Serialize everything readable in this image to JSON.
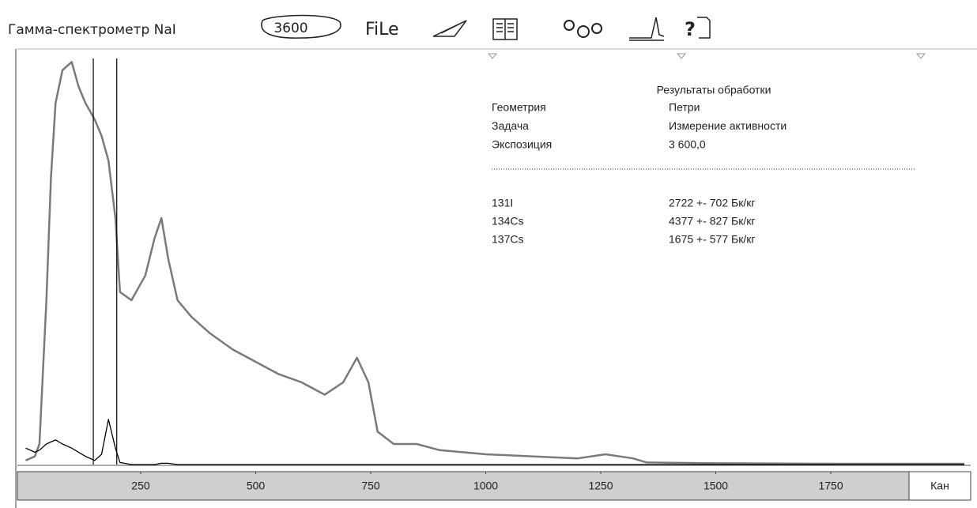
{
  "toolbar": {
    "title": "Гамма-спектрометр NaI",
    "time_button": "3600",
    "file_icon": "FiLe",
    "help_icon": "?"
  },
  "chart_data": {
    "type": "line",
    "x_label": "Кан",
    "xlim": [
      -18,
      2054
    ],
    "ylim": [
      0,
      100
    ],
    "xticks": [
      250,
      500,
      750,
      1000,
      1250,
      1500,
      1750
    ],
    "x": [
      0,
      20,
      30,
      45,
      55,
      65,
      80,
      100,
      115,
      130,
      150,
      165,
      180,
      195,
      205,
      230,
      260,
      280,
      295,
      310,
      330,
      360,
      400,
      450,
      500,
      550,
      600,
      650,
      690,
      720,
      745,
      765,
      800,
      850,
      900,
      950,
      1000,
      1100,
      1200,
      1260,
      1320,
      1350,
      1500,
      1750,
      2040
    ],
    "series": [
      {
        "color": "#7a7a7a",
        "values": [
          1,
          2,
          5,
          40,
          70,
          88,
          96,
          98,
          92,
          88,
          84,
          80,
          74,
          60,
          42,
          40,
          46,
          55,
          60,
          50,
          40,
          36,
          32,
          28,
          25,
          22,
          20,
          17,
          20,
          26,
          20,
          8,
          5,
          5,
          3.5,
          3,
          2.5,
          2,
          1.5,
          2.5,
          1.5,
          0.5,
          0.3,
          0.2,
          0.2
        ]
      },
      {
        "color": "#000000",
        "values": [
          4,
          3,
          3.5,
          5,
          5.5,
          6,
          5,
          4,
          3,
          2,
          1,
          2.5,
          11,
          4,
          0.5,
          0,
          0,
          0,
          0.3,
          0.3,
          0,
          0,
          0,
          0,
          0,
          0,
          0,
          0,
          0,
          0,
          0,
          0,
          0,
          0,
          0,
          0,
          0,
          0,
          0,
          0,
          0,
          0,
          0,
          0,
          0
        ]
      }
    ],
    "markers": [
      147,
      198
    ]
  },
  "results": {
    "title": "Результаты обработки",
    "rows": [
      [
        "Геометрия",
        "Петри"
      ],
      [
        "Задача",
        "Измерение активности"
      ],
      [
        "Экспозиция",
        "3 600,0"
      ]
    ],
    "nuclides": [
      [
        "131I",
        "2722 +- 702 Бк/кг"
      ],
      [
        "134Cs",
        "4377 +- 827 Бк/кг"
      ],
      [
        "137Cs",
        "1675 +- 577 Бк/кг"
      ]
    ]
  }
}
